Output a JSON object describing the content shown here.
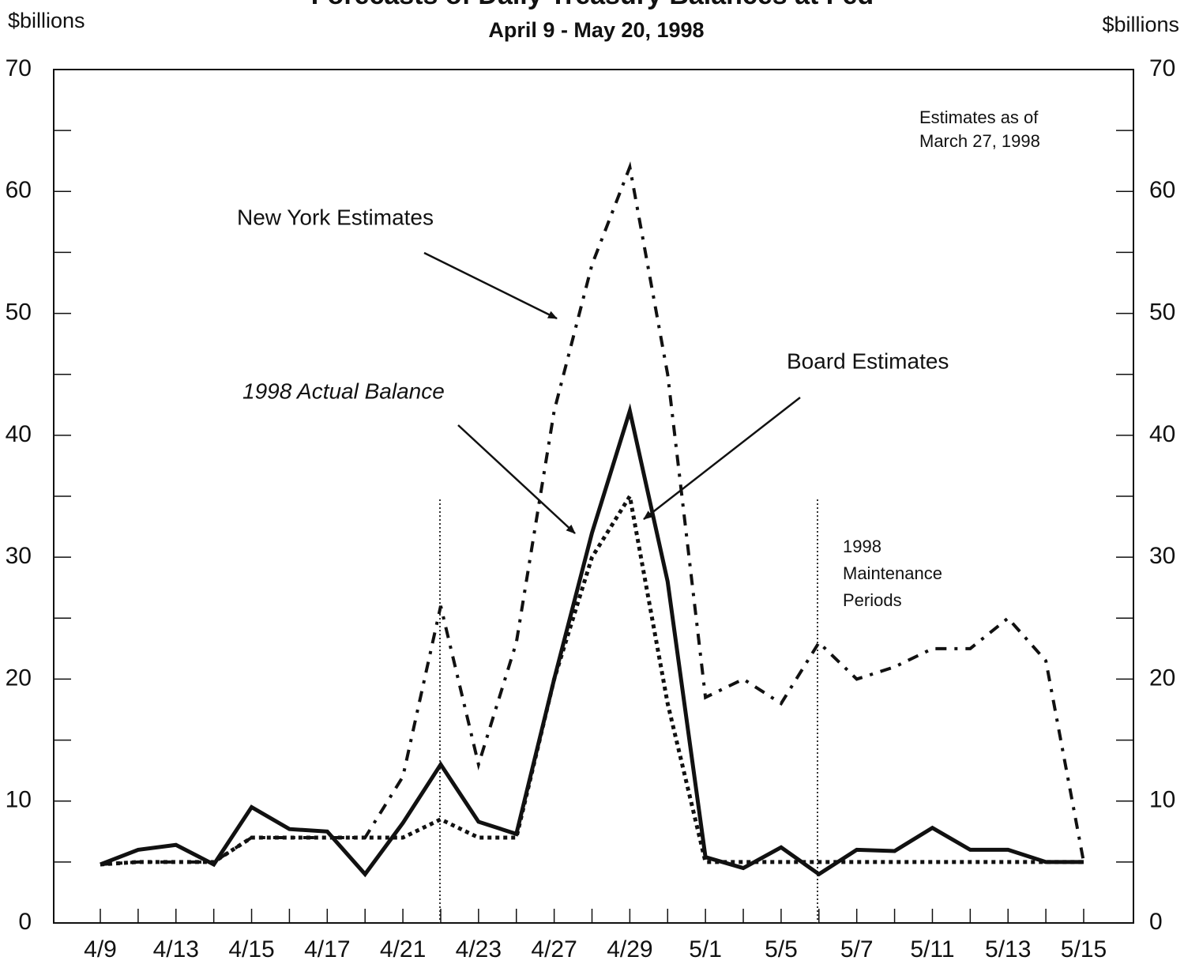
{
  "chart_data": {
    "type": "line",
    "title": "Forecasts of Daily Treasury Balances at Fed",
    "subtitle": "April 9 - May 20, 1998",
    "y_label": "$billions",
    "y2_label": "$billions",
    "note": [
      "Estimates as of",
      "March 27, 1998"
    ],
    "maintenance_note": [
      "1998",
      "Maintenance",
      "Periods"
    ],
    "categories": [
      "4/9",
      null,
      "4/13",
      null,
      "4/15",
      null,
      "4/17",
      null,
      "4/21",
      null,
      "4/23",
      null,
      "4/27",
      null,
      "4/29",
      null,
      "5/1",
      null,
      "5/5",
      null,
      "5/7",
      null,
      "5/11",
      null,
      "5/13",
      null,
      "5/15"
    ],
    "series": [
      {
        "name": "1998 Actual Balance",
        "color": "#111111",
        "style": "solid",
        "values": [
          4.8,
          6.0,
          6.4,
          4.8,
          9.5,
          7.7,
          7.5,
          4.0,
          8.2,
          13.0,
          8.3,
          7.3,
          20,
          32,
          42,
          28,
          5.4,
          4.5,
          6.2,
          4.0,
          6.0,
          5.9,
          7.8,
          6.0,
          6.0,
          5.0,
          5.0
        ]
      },
      {
        "name": "Board Estimates",
        "color": "#111111",
        "style": "dash",
        "values": [
          4.8,
          5,
          5,
          5,
          7,
          7,
          7,
          7,
          7,
          8.5,
          7,
          7,
          20,
          30,
          35,
          18,
          5,
          5,
          5,
          5,
          5,
          5,
          5,
          5,
          5,
          5,
          5
        ]
      },
      {
        "name": "New York Estimates",
        "color": "#111111",
        "style": "dashdot",
        "values": [
          4.8,
          5,
          5,
          5,
          7,
          7,
          7,
          7,
          12,
          26,
          13,
          23,
          42,
          54,
          62,
          45,
          18.5,
          20,
          18,
          23,
          20,
          21,
          22.5,
          22.5,
          25,
          21.5,
          5
        ]
      }
    ],
    "ylim": [
      0,
      70
    ],
    "yticks": [
      0,
      10,
      20,
      30,
      40,
      50,
      60,
      70
    ],
    "minor_yticks": [
      5,
      15,
      25,
      35,
      45,
      55,
      65
    ],
    "y2lim": [
      0,
      70
    ],
    "y2ticks": [
      0,
      10,
      20,
      30,
      40,
      50,
      60,
      70
    ]
  }
}
